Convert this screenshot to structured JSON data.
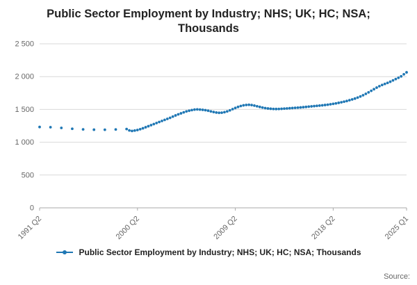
{
  "header": {
    "title": "Public Sector Employment by Industry; NHS; UK; HC; NSA; Thousands"
  },
  "legend": {
    "label": "Public Sector Employment by Industry; NHS; UK; HC; NSA; Thousands"
  },
  "footer": {
    "source_label": "Source:"
  },
  "chart_data": {
    "type": "line",
    "title": "Public Sector Employment by Industry; NHS; UK; HC; NSA; Thousands",
    "xlabel": "",
    "ylabel": "",
    "x_unit": "quarters since 1991 Q2",
    "xlim": [
      0,
      135
    ],
    "ylim": [
      0,
      2500
    ],
    "grid": "horizontal",
    "legend_position": "bottom",
    "marker": "dot",
    "xticks": [
      {
        "t": 0,
        "label": "1991 Q2"
      },
      {
        "t": 36,
        "label": "2000 Q2"
      },
      {
        "t": 72,
        "label": "2009 Q2"
      },
      {
        "t": 108,
        "label": "2018 Q2"
      },
      {
        "t": 135,
        "label": "2025 Q1"
      }
    ],
    "yticks": [
      {
        "v": 0,
        "label": "0"
      },
      {
        "v": 500,
        "label": "500"
      },
      {
        "v": 1000,
        "label": "1 000"
      },
      {
        "v": 1500,
        "label": "1 500"
      },
      {
        "v": 2000,
        "label": "2 000"
      },
      {
        "v": 2500,
        "label": "2 500"
      }
    ],
    "colors": {
      "series": "#1f77b4",
      "grid": "#d9d9d9",
      "axis": "#aaaaaa",
      "tick_text": "#666666"
    },
    "series": [
      {
        "name": "Public Sector Employment by Industry; NHS; UK; HC; NSA; Thousands",
        "points": [
          [
            0,
            1232
          ],
          [
            4,
            1229
          ],
          [
            8,
            1218
          ],
          [
            12,
            1205
          ],
          [
            16,
            1196
          ],
          [
            20,
            1191
          ],
          [
            24,
            1190
          ],
          [
            28,
            1194
          ],
          [
            32,
            1201
          ],
          [
            33,
            1180
          ],
          [
            34,
            1172
          ],
          [
            35,
            1178
          ],
          [
            36,
            1186
          ],
          [
            37,
            1198
          ],
          [
            38,
            1212
          ],
          [
            39,
            1228
          ],
          [
            40,
            1244
          ],
          [
            41,
            1260
          ],
          [
            42,
            1276
          ],
          [
            43,
            1292
          ],
          [
            44,
            1308
          ],
          [
            45,
            1324
          ],
          [
            46,
            1340
          ],
          [
            47,
            1356
          ],
          [
            48,
            1372
          ],
          [
            49,
            1390
          ],
          [
            50,
            1408
          ],
          [
            51,
            1425
          ],
          [
            52,
            1440
          ],
          [
            53,
            1455
          ],
          [
            54,
            1470
          ],
          [
            55,
            1480
          ],
          [
            56,
            1490
          ],
          [
            57,
            1497
          ],
          [
            58,
            1500
          ],
          [
            59,
            1498
          ],
          [
            60,
            1494
          ],
          [
            61,
            1488
          ],
          [
            62,
            1480
          ],
          [
            63,
            1470
          ],
          [
            64,
            1460
          ],
          [
            65,
            1452
          ],
          [
            66,
            1448
          ],
          [
            67,
            1450
          ],
          [
            68,
            1458
          ],
          [
            69,
            1470
          ],
          [
            70,
            1486
          ],
          [
            71,
            1504
          ],
          [
            72,
            1522
          ],
          [
            73,
            1538
          ],
          [
            74,
            1552
          ],
          [
            75,
            1562
          ],
          [
            76,
            1568
          ],
          [
            77,
            1570
          ],
          [
            78,
            1566
          ],
          [
            79,
            1558
          ],
          [
            80,
            1548
          ],
          [
            81,
            1538
          ],
          [
            82,
            1528
          ],
          [
            83,
            1520
          ],
          [
            84,
            1514
          ],
          [
            85,
            1510
          ],
          [
            86,
            1507
          ],
          [
            87,
            1506
          ],
          [
            88,
            1507
          ],
          [
            89,
            1509
          ],
          [
            90,
            1512
          ],
          [
            91,
            1515
          ],
          [
            92,
            1518
          ],
          [
            93,
            1521
          ],
          [
            94,
            1524
          ],
          [
            95,
            1527
          ],
          [
            96,
            1530
          ],
          [
            97,
            1534
          ],
          [
            98,
            1538
          ],
          [
            99,
            1542
          ],
          [
            100,
            1546
          ],
          [
            101,
            1550
          ],
          [
            102,
            1554
          ],
          [
            103,
            1558
          ],
          [
            104,
            1562
          ],
          [
            105,
            1567
          ],
          [
            106,
            1572
          ],
          [
            107,
            1578
          ],
          [
            108,
            1585
          ],
          [
            109,
            1592
          ],
          [
            110,
            1600
          ],
          [
            111,
            1609
          ],
          [
            112,
            1618
          ],
          [
            113,
            1628
          ],
          [
            114,
            1640
          ],
          [
            115,
            1652
          ],
          [
            116,
            1665
          ],
          [
            117,
            1680
          ],
          [
            118,
            1697
          ],
          [
            119,
            1716
          ],
          [
            120,
            1737
          ],
          [
            121,
            1760
          ],
          [
            122,
            1784
          ],
          [
            123,
            1808
          ],
          [
            124,
            1832
          ],
          [
            125,
            1854
          ],
          [
            126,
            1872
          ],
          [
            127,
            1888
          ],
          [
            128,
            1904
          ],
          [
            129,
            1922
          ],
          [
            130,
            1942
          ],
          [
            131,
            1962
          ],
          [
            132,
            1982
          ],
          [
            133,
            2004
          ],
          [
            134,
            2035
          ],
          [
            135,
            2065
          ]
        ]
      }
    ]
  }
}
